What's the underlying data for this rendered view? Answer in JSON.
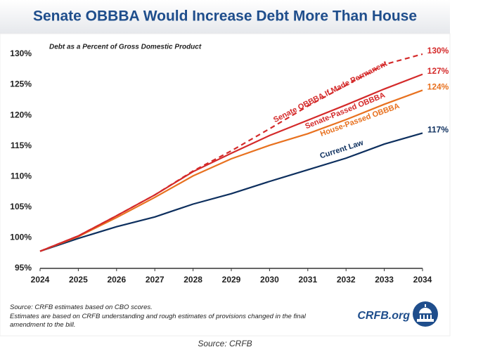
{
  "chart_data": {
    "type": "line",
    "title": "Senate OBBBA Would Increase Debt More Than House",
    "subtitle": "Debt as a Percent of Gross Domestic Product",
    "x": [
      2024,
      2025,
      2026,
      2027,
      2028,
      2029,
      2030,
      2031,
      2032,
      2033,
      2034
    ],
    "xlim": [
      2024,
      2034
    ],
    "xticks": [
      2024,
      2025,
      2026,
      2027,
      2028,
      2029,
      2030,
      2031,
      2032,
      2033,
      2034
    ],
    "ylim": [
      95,
      130
    ],
    "yticks": [
      {
        "value": 95,
        "label": "95%"
      },
      {
        "value": 100,
        "label": "100%"
      },
      {
        "value": 105,
        "label": "105%"
      },
      {
        "value": 110,
        "label": "110%"
      },
      {
        "value": 115,
        "label": "115%"
      },
      {
        "value": 120,
        "label": "120%"
      },
      {
        "value": 125,
        "label": "125%"
      },
      {
        "value": 130,
        "label": "130%"
      }
    ],
    "series": [
      {
        "name": "Senate OBBBA If Made Permanent",
        "color": "#d42a2a",
        "dashed": true,
        "values": [
          97.8,
          100.3,
          103.6,
          107.0,
          110.9,
          114.2,
          117.8,
          121.5,
          124.9,
          128.3,
          130.0
        ],
        "value_labels": [
          null,
          null,
          null,
          null,
          null,
          null,
          null,
          null,
          null,
          null,
          "130%"
        ]
      },
      {
        "name": "Senate-Passed OBBBA",
        "color": "#d42a2a",
        "values": [
          97.8,
          100.3,
          103.6,
          107.0,
          110.8,
          113.8,
          116.7,
          119.2,
          121.7,
          124.3,
          126.7
        ],
        "value_labels": [
          null,
          null,
          null,
          null,
          null,
          null,
          null,
          null,
          null,
          null,
          "127%"
        ]
      },
      {
        "name": "House-Passed OBBBA",
        "color": "#e8711f",
        "values": [
          97.8,
          100.2,
          103.3,
          106.6,
          110.1,
          112.9,
          115.1,
          117.0,
          119.3,
          121.8,
          124.1
        ],
        "value_labels": [
          null,
          null,
          null,
          null,
          null,
          null,
          null,
          null,
          null,
          null,
          "124%"
        ]
      },
      {
        "name": "Current Law",
        "color": "#0d2f5e",
        "values": [
          97.8,
          99.9,
          101.8,
          103.4,
          105.5,
          107.2,
          109.2,
          111.1,
          113.0,
          115.3,
          117.1
        ],
        "value_labels": [
          null,
          null,
          null,
          null,
          null,
          null,
          null,
          null,
          null,
          null,
          "117%"
        ]
      }
    ],
    "notes": [
      "Source: CRFB estimates based on CBO scores.",
      "Estimates are based on CRFB understanding and rough estimates of provisions changed in the final amendment to the bill."
    ],
    "logo": "CRFB.org",
    "caption": "Source: CRFB"
  }
}
